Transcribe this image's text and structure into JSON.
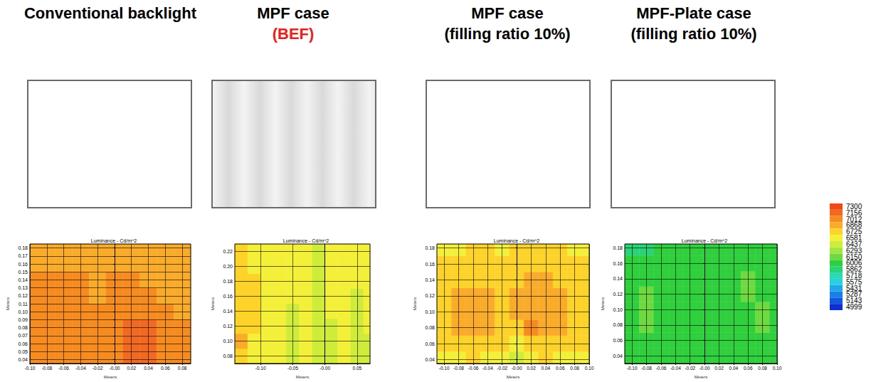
{
  "chart_data": [
    {
      "type": "heatmap",
      "heading": "Conventional backlight",
      "title": "Luminance - Cd/m^2",
      "x_label": "Meters",
      "y_label": "Meters",
      "grid": true,
      "xlim": [
        -0.1,
        0.09
      ],
      "ylim": [
        0.035,
        0.185
      ],
      "xticks": [
        {
          "value": -0.1,
          "label": "-0.10"
        },
        -0.08,
        -0.06,
        -0.04,
        -0.02,
        {
          "value": 0,
          "label": "-0.00"
        },
        0.02,
        0.04,
        0.06,
        0.08
      ],
      "yticks": [
        0.04,
        0.05,
        0.06,
        0.07,
        0.08,
        0.09,
        {
          "value": 0.1,
          "label": "0.10"
        },
        0.11,
        0.12,
        0.13,
        0.14,
        0.15,
        0.16,
        0.17,
        0.18
      ],
      "x": [
        -0.1,
        -0.08,
        -0.06,
        -0.04,
        -0.02,
        0,
        0.02,
        0.04,
        0.06,
        0.08
      ],
      "y": [
        0.04,
        0.06,
        0.08,
        0.1,
        0.12,
        0.14,
        0.16,
        0.18
      ],
      "values": [
        [
          7030,
          7040,
          7050,
          7060,
          7060,
          7130,
          7180,
          7170,
          7070,
          7030
        ],
        [
          7050,
          7060,
          7070,
          7080,
          7070,
          7140,
          7200,
          7190,
          7080,
          7040
        ],
        [
          7060,
          7070,
          7080,
          7070,
          7060,
          7120,
          7180,
          7170,
          7060,
          7030
        ],
        [
          7070,
          7080,
          7070,
          7060,
          7040,
          7080,
          7120,
          7060,
          7030,
          7010
        ],
        [
          7060,
          7070,
          7060,
          7050,
          7010,
          7040,
          7060,
          7030,
          7000,
          6990
        ],
        [
          7030,
          7040,
          7030,
          7020,
          6990,
          7020,
          7040,
          7000,
          6990,
          6980
        ],
        [
          6980,
          6980,
          6990,
          7000,
          6990,
          6980,
          7000,
          6990,
          6980,
          6970
        ],
        [
          6950,
          6950,
          6960,
          6970,
          6950,
          6940,
          6960,
          6970,
          6960,
          6950
        ]
      ]
    },
    {
      "type": "heatmap",
      "heading": "MPF case",
      "subtitle": {
        "text": "(BEF)",
        "color": "#e8221b"
      },
      "title": "Luminance - Cd/m^2",
      "x_label": "Meters",
      "y_label": "Meters",
      "grid": true,
      "xlim": [
        -0.14,
        0.07
      ],
      "ylim": [
        0.07,
        0.23
      ],
      "xticks": [
        {
          "value": -0.1,
          "label": "-0.10"
        },
        -0.05,
        {
          "value": 0,
          "label": "-0.00"
        },
        0.05
      ],
      "yticks": [
        0.08,
        {
          "value": 0.1,
          "label": "0.10"
        },
        0.12,
        0.14,
        0.16,
        0.18,
        {
          "value": 0.2,
          "label": "0.20"
        },
        0.22
      ],
      "x": [
        -0.13,
        -0.11,
        -0.09,
        -0.07,
        -0.05,
        -0.03,
        -0.01,
        0.01,
        0.03,
        0.05,
        0.07
      ],
      "y": [
        0.08,
        0.1,
        0.12,
        0.14,
        0.16,
        0.18,
        0.2,
        0.22
      ],
      "values": [
        [
          6820,
          6700,
          6620,
          6660,
          6560,
          6620,
          6540,
          6560,
          6600,
          6540,
          6560
        ],
        [
          6900,
          6720,
          6600,
          6680,
          6540,
          6640,
          6520,
          6560,
          6620,
          6540,
          6580
        ],
        [
          6850,
          6740,
          6610,
          6690,
          6560,
          6650,
          6500,
          6580,
          6640,
          6560,
          6600
        ],
        [
          6800,
          6750,
          6630,
          6700,
          6580,
          6660,
          6520,
          6600,
          6650,
          6570,
          6620
        ],
        [
          6780,
          6740,
          6640,
          6690,
          6600,
          6640,
          6540,
          6600,
          6640,
          6580,
          6620
        ],
        [
          6760,
          6730,
          6650,
          6680,
          6620,
          6620,
          6560,
          6610,
          6630,
          6590,
          6610
        ],
        [
          6770,
          6720,
          6640,
          6670,
          6630,
          6610,
          6570,
          6600,
          6620,
          6600,
          6600
        ],
        [
          6780,
          6710,
          6640,
          6660,
          6620,
          6600,
          6580,
          6590,
          6610,
          6600,
          6590
        ]
      ]
    },
    {
      "type": "heatmap",
      "heading": "MPF case",
      "subtitle": {
        "text": "(filling ratio 10%)",
        "color": "#000000"
      },
      "title": "Luminance - Cd/m^2",
      "x_label": "Meters",
      "y_label": "Meters",
      "grid": true,
      "xlim": [
        -0.11,
        0.1
      ],
      "ylim": [
        0.035,
        0.185
      ],
      "xticks": [
        {
          "value": -0.1,
          "label": "-0.10"
        },
        -0.08,
        -0.06,
        -0.04,
        -0.02,
        {
          "value": 0,
          "label": "-0.00"
        },
        0.02,
        0.04,
        0.06,
        0.08,
        {
          "value": 0.1,
          "label": "0.10"
        }
      ],
      "yticks": [
        0.04,
        0.06,
        0.08,
        {
          "value": 0.1,
          "label": "0.10"
        },
        0.12,
        0.14,
        0.16,
        0.18
      ],
      "x": [
        -0.1,
        -0.08,
        -0.06,
        -0.04,
        -0.02,
        0,
        0.02,
        0.04,
        0.06,
        0.08,
        0.1
      ],
      "y": [
        0.04,
        0.06,
        0.08,
        0.1,
        0.12,
        0.14,
        0.16,
        0.18
      ],
      "values": [
        [
          6700,
          6720,
          6740,
          6720,
          6650,
          6560,
          6700,
          6740,
          6720,
          6700,
          6700
        ],
        [
          6760,
          6790,
          6800,
          6780,
          6740,
          6720,
          6800,
          6820,
          6800,
          6780,
          6760
        ],
        [
          6800,
          6900,
          6920,
          6890,
          6800,
          6860,
          7020,
          6920,
          6900,
          6840,
          6780
        ],
        [
          6800,
          6910,
          6930,
          6900,
          6820,
          6880,
          6950,
          6930,
          6920,
          6850,
          6790
        ],
        [
          6790,
          6890,
          6900,
          6880,
          6810,
          6870,
          6920,
          6910,
          6900,
          6830,
          6780
        ],
        [
          6780,
          6820,
          6830,
          6810,
          6790,
          6820,
          6890,
          6880,
          6850,
          6800,
          6770
        ],
        [
          6760,
          6770,
          6780,
          6770,
          6760,
          6770,
          6790,
          6790,
          6780,
          6770,
          6760
        ],
        [
          6700,
          6720,
          6740,
          6730,
          6720,
          6740,
          6750,
          6740,
          6730,
          6720,
          6700
        ]
      ]
    },
    {
      "type": "heatmap",
      "heading": "MPF-Plate case",
      "subtitle": {
        "text": "(filling ratio 10%)",
        "color": "#000000"
      },
      "title": "Luminance - Cd/m^2",
      "x_label": "Meters",
      "y_label": "Meters",
      "grid": true,
      "xlim": [
        -0.11,
        0.1
      ],
      "ylim": [
        0.03,
        0.185
      ],
      "xticks": [
        {
          "value": -0.1,
          "label": "-0.10"
        },
        -0.08,
        -0.06,
        -0.04,
        -0.02,
        {
          "value": 0,
          "label": "-0.00"
        },
        0.02,
        0.04,
        0.06,
        0.08,
        {
          "value": 0.1,
          "label": "0.10"
        }
      ],
      "yticks": [
        0.04,
        0.06,
        0.08,
        {
          "value": 0.1,
          "label": "0.10"
        },
        0.12,
        0.14,
        0.16,
        0.18
      ],
      "x": [
        -0.1,
        -0.08,
        -0.06,
        -0.04,
        -0.02,
        0,
        0.02,
        0.04,
        0.06,
        0.08,
        0.1
      ],
      "y": [
        0.04,
        0.06,
        0.08,
        0.1,
        0.12,
        0.14,
        0.16,
        0.18
      ],
      "values": [
        [
          6060,
          6080,
          6100,
          6070,
          6040,
          6080,
          6060,
          6090,
          6070,
          6080,
          6060
        ],
        [
          6070,
          6100,
          6120,
          6080,
          6060,
          6100,
          6080,
          6110,
          6090,
          6100,
          6070
        ],
        [
          6080,
          6160,
          6110,
          6090,
          6070,
          6120,
          6090,
          6130,
          6100,
          6170,
          6080
        ],
        [
          6090,
          6170,
          6120,
          6100,
          6080,
          6110,
          6100,
          6140,
          6110,
          6160,
          6080
        ],
        [
          6100,
          6200,
          6130,
          6110,
          6070,
          6100,
          6090,
          6120,
          6160,
          6120,
          6080
        ],
        [
          6080,
          6120,
          6110,
          6090,
          6060,
          6080,
          6070,
          6100,
          6160,
          6100,
          6070
        ],
        [
          6020,
          6060,
          6090,
          6080,
          6050,
          6070,
          6060,
          6080,
          6090,
          6080,
          6060
        ],
        [
          5960,
          5980,
          6020,
          6050,
          6040,
          6050,
          6040,
          6050,
          6060,
          6050,
          6040
        ]
      ]
    }
  ],
  "colorbar": {
    "ticks": [
      7300,
      7156,
      7012,
      6868,
      6725,
      6581,
      6437,
      6293,
      6150,
      6006,
      5862,
      5718,
      5575,
      5431,
      5287,
      5143,
      4999
    ],
    "colors": [
      "#ee4a1a",
      "#f26a21",
      "#f68b1f",
      "#fbab2a",
      "#fdd32a",
      "#f4f03a",
      "#d0ec3a",
      "#a4e43f",
      "#6fd942",
      "#2fcf3d",
      "#2bd377",
      "#2cd9b0",
      "#28cfe0",
      "#1fa7ea",
      "#1a7fe8",
      "#1356e0",
      "#0c2fd2"
    ]
  }
}
